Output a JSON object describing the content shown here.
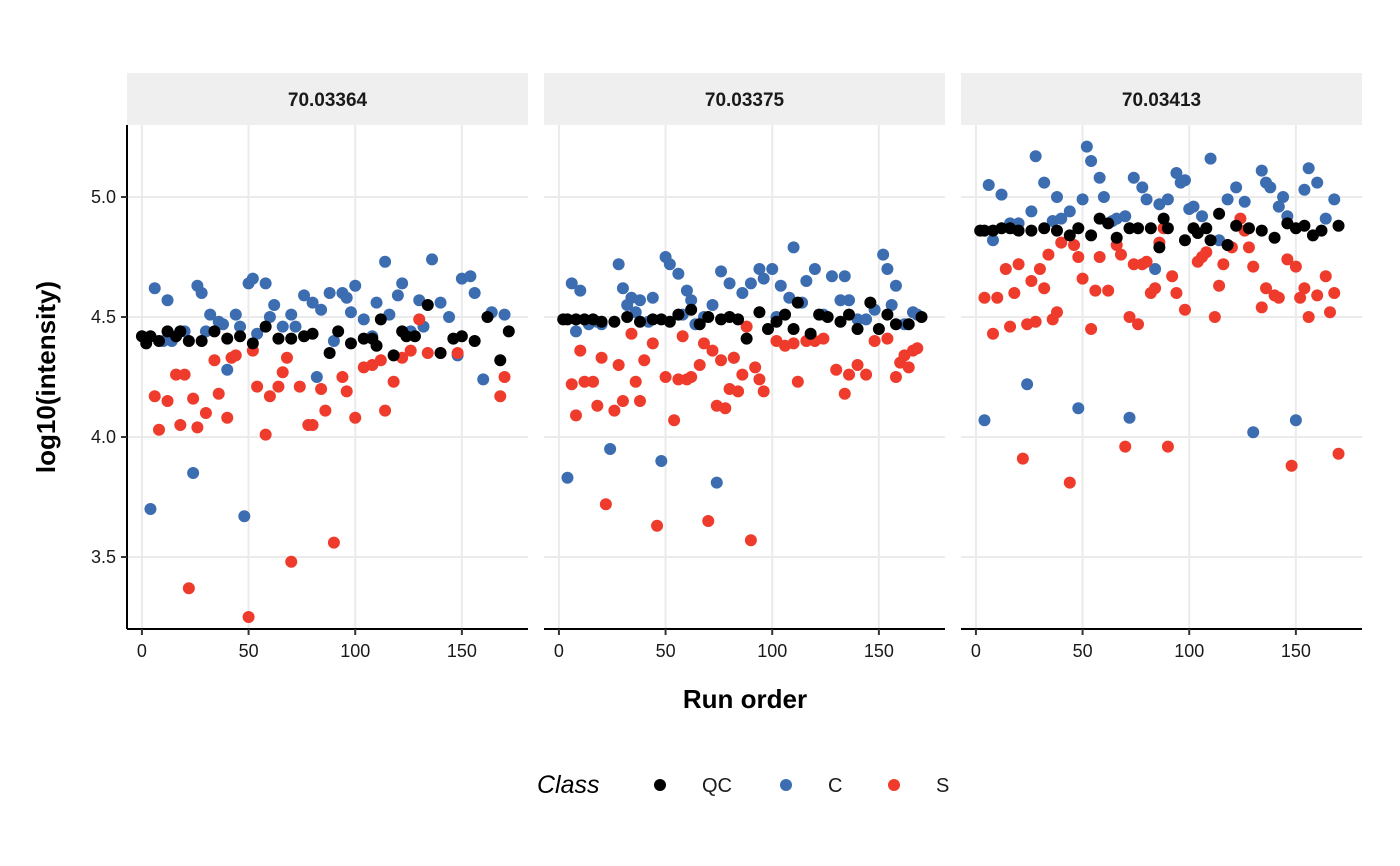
{
  "chart_data": {
    "type": "scatter",
    "xlabel": "Run order",
    "ylabel": "log10(intensity)",
    "xlim": [
      -7,
      181
    ],
    "ylim": [
      3.2,
      5.3
    ],
    "x_ticks": [
      0,
      50,
      100,
      150
    ],
    "y_ticks": [
      3.5,
      4.0,
      4.5,
      5.0
    ],
    "x_tick_labels": [
      "0",
      "50",
      "100",
      "150"
    ],
    "y_tick_labels": [
      "3.5",
      "4.0",
      "4.5",
      "5.0"
    ],
    "grid": true,
    "legend": {
      "title": "Class",
      "position": "bottom",
      "entries": [
        {
          "label": "QC",
          "color": "#000000"
        },
        {
          "label": "C",
          "color": "#3b6db0"
        },
        {
          "label": "S",
          "color": "#ee3b2c"
        }
      ]
    },
    "facets": [
      {
        "title": "70.03364",
        "series": [
          {
            "name": "QC",
            "color": "#000000",
            "x": [
              0,
              2,
              4,
              8,
              12,
              16,
              18,
              22,
              28,
              34,
              40,
              46,
              52,
              58,
              64,
              70,
              76,
              80,
              88,
              92,
              98,
              104,
              108,
              110,
              112,
              118,
              122,
              124,
              128,
              134,
              140,
              146,
              150,
              156,
              162,
              168,
              172
            ],
            "y": [
              4.42,
              4.39,
              4.42,
              4.4,
              4.44,
              4.42,
              4.44,
              4.4,
              4.4,
              4.44,
              4.41,
              4.42,
              4.39,
              4.46,
              4.41,
              4.41,
              4.42,
              4.43,
              4.35,
              4.44,
              4.39,
              4.41,
              4.41,
              4.38,
              4.49,
              4.34,
              4.44,
              4.42,
              4.42,
              4.55,
              4.35,
              4.41,
              4.42,
              4.4,
              4.5,
              4.32,
              4.44
            ]
          },
          {
            "name": "C",
            "color": "#3b6db0",
            "x": [
              4,
              6,
              10,
              12,
              14,
              18,
              20,
              24,
              26,
              28,
              30,
              32,
              36,
              38,
              40,
              44,
              46,
              48,
              50,
              52,
              54,
              58,
              60,
              62,
              66,
              70,
              72,
              76,
              80,
              82,
              84,
              88,
              90,
              94,
              96,
              98,
              100,
              104,
              108,
              110,
              114,
              116,
              120,
              122,
              126,
              130,
              132,
              136,
              140,
              144,
              148,
              150,
              154,
              156,
              160,
              164,
              170
            ],
            "y": [
              3.7,
              4.62,
              4.4,
              4.57,
              4.4,
              4.44,
              4.44,
              3.85,
              4.63,
              4.6,
              4.44,
              4.51,
              4.48,
              4.47,
              4.28,
              4.51,
              4.46,
              3.67,
              4.64,
              4.66,
              4.43,
              4.64,
              4.5,
              4.55,
              4.46,
              4.51,
              4.46,
              4.59,
              4.56,
              4.25,
              4.53,
              4.6,
              4.4,
              4.6,
              4.58,
              4.52,
              4.63,
              4.49,
              4.42,
              4.56,
              4.73,
              4.51,
              4.59,
              4.64,
              4.44,
              4.57,
              4.46,
              4.74,
              4.56,
              4.5,
              4.34,
              4.66,
              4.67,
              4.6,
              4.24,
              4.52,
              4.51
            ]
          },
          {
            "name": "S",
            "color": "#ee3b2c",
            "x": [
              6,
              8,
              12,
              16,
              18,
              20,
              22,
              24,
              26,
              30,
              34,
              36,
              40,
              42,
              44,
              50,
              52,
              54,
              58,
              60,
              64,
              66,
              68,
              70,
              74,
              78,
              80,
              84,
              86,
              90,
              94,
              96,
              100,
              104,
              108,
              112,
              114,
              118,
              122,
              126,
              130,
              134,
              140,
              148,
              168,
              170
            ],
            "y": [
              4.17,
              4.03,
              4.15,
              4.26,
              4.05,
              4.26,
              3.37,
              4.16,
              4.04,
              4.1,
              4.32,
              4.18,
              4.08,
              4.33,
              4.34,
              3.25,
              4.36,
              4.21,
              4.01,
              4.17,
              4.21,
              4.27,
              4.33,
              3.48,
              4.21,
              4.05,
              4.05,
              4.2,
              4.11,
              3.56,
              4.25,
              4.19,
              4.08,
              4.29,
              4.3,
              4.32,
              4.11,
              4.23,
              4.33,
              4.36,
              4.49,
              4.35,
              4.35,
              4.35,
              4.17,
              4.25
            ]
          }
        ]
      },
      {
        "title": "70.03375",
        "series": [
          {
            "name": "QC",
            "color": "#000000",
            "x": [
              2,
              4,
              8,
              12,
              16,
              20,
              26,
              32,
              38,
              44,
              48,
              52,
              56,
              62,
              66,
              70,
              76,
              80,
              84,
              88,
              94,
              98,
              102,
              106,
              110,
              112,
              118,
              122,
              126,
              132,
              136,
              140,
              146,
              150,
              154,
              158,
              164,
              170
            ],
            "y": [
              4.49,
              4.49,
              4.49,
              4.49,
              4.49,
              4.48,
              4.48,
              4.5,
              4.48,
              4.49,
              4.49,
              4.48,
              4.51,
              4.53,
              4.47,
              4.5,
              4.49,
              4.5,
              4.49,
              4.41,
              4.52,
              4.45,
              4.48,
              4.51,
              4.45,
              4.56,
              4.43,
              4.51,
              4.5,
              4.48,
              4.51,
              4.45,
              4.56,
              4.45,
              4.51,
              4.47,
              4.47,
              4.5
            ]
          },
          {
            "name": "C",
            "color": "#3b6db0",
            "x": [
              4,
              6,
              8,
              10,
              14,
              18,
              20,
              24,
              28,
              30,
              32,
              34,
              36,
              38,
              42,
              44,
              48,
              50,
              52,
              56,
              58,
              60,
              62,
              64,
              68,
              72,
              74,
              76,
              80,
              82,
              86,
              90,
              94,
              96,
              100,
              102,
              104,
              108,
              110,
              114,
              116,
              120,
              124,
              128,
              132,
              134,
              136,
              140,
              144,
              148,
              152,
              154,
              156,
              158,
              162,
              166,
              168
            ],
            "y": [
              3.83,
              4.64,
              4.44,
              4.61,
              4.47,
              4.48,
              4.47,
              3.95,
              4.72,
              4.62,
              4.55,
              4.58,
              4.52,
              4.57,
              4.48,
              4.58,
              3.9,
              4.75,
              4.72,
              4.68,
              4.51,
              4.61,
              4.57,
              4.47,
              4.5,
              4.55,
              3.81,
              4.69,
              4.64,
              4.33,
              4.6,
              4.64,
              4.7,
              4.66,
              4.7,
              4.5,
              4.63,
              4.58,
              4.79,
              4.56,
              4.65,
              4.7,
              4.51,
              4.67,
              4.57,
              4.67,
              4.57,
              4.49,
              4.49,
              4.53,
              4.76,
              4.7,
              4.55,
              4.63,
              4.47,
              4.52,
              4.51
            ]
          },
          {
            "name": "S",
            "color": "#ee3b2c",
            "x": [
              6,
              8,
              10,
              12,
              16,
              18,
              20,
              22,
              26,
              28,
              30,
              34,
              36,
              38,
              40,
              44,
              46,
              50,
              54,
              56,
              58,
              60,
              62,
              66,
              68,
              70,
              72,
              74,
              76,
              78,
              80,
              82,
              84,
              86,
              88,
              90,
              92,
              94,
              96,
              102,
              106,
              110,
              112,
              116,
              120,
              124,
              130,
              134,
              136,
              140,
              144,
              148,
              154,
              158,
              160,
              162,
              164,
              166,
              168
            ],
            "y": [
              4.22,
              4.09,
              4.36,
              4.23,
              4.23,
              4.13,
              4.33,
              3.72,
              4.11,
              4.3,
              4.15,
              4.43,
              4.23,
              4.15,
              4.32,
              4.39,
              3.63,
              4.25,
              4.07,
              4.24,
              4.42,
              4.24,
              4.25,
              4.3,
              4.39,
              3.65,
              4.36,
              4.13,
              4.32,
              4.12,
              4.2,
              4.33,
              4.19,
              4.26,
              4.46,
              3.57,
              4.29,
              4.24,
              4.19,
              4.4,
              4.38,
              4.39,
              4.23,
              4.4,
              4.4,
              4.41,
              4.28,
              4.18,
              4.26,
              4.3,
              4.26,
              4.4,
              4.41,
              4.25,
              4.31,
              4.34,
              4.29,
              4.36,
              4.37
            ]
          }
        ]
      },
      {
        "title": "70.03413",
        "series": [
          {
            "name": "QC",
            "color": "#000000",
            "x": [
              2,
              4,
              8,
              12,
              16,
              20,
              26,
              32,
              38,
              44,
              48,
              54,
              58,
              62,
              66,
              72,
              76,
              82,
              86,
              88,
              90,
              98,
              102,
              104,
              108,
              110,
              114,
              118,
              122,
              128,
              134,
              140,
              146,
              150,
              154,
              158,
              162,
              170
            ],
            "y": [
              4.86,
              4.86,
              4.86,
              4.87,
              4.87,
              4.86,
              4.86,
              4.87,
              4.86,
              4.84,
              4.87,
              4.84,
              4.91,
              4.89,
              4.83,
              4.87,
              4.87,
              4.87,
              4.79,
              4.91,
              4.87,
              4.82,
              4.87,
              4.85,
              4.87,
              4.82,
              4.93,
              4.8,
              4.88,
              4.87,
              4.86,
              4.83,
              4.89,
              4.87,
              4.88,
              4.84,
              4.86,
              4.88
            ]
          },
          {
            "name": "C",
            "color": "#3b6db0",
            "x": [
              4,
              6,
              8,
              12,
              16,
              18,
              20,
              24,
              26,
              28,
              32,
              36,
              38,
              40,
              44,
              48,
              50,
              52,
              54,
              58,
              60,
              64,
              66,
              70,
              72,
              74,
              78,
              80,
              84,
              86,
              90,
              94,
              96,
              98,
              100,
              102,
              106,
              110,
              114,
              118,
              122,
              126,
              130,
              134,
              136,
              138,
              142,
              144,
              146,
              150,
              154,
              156,
              160,
              164,
              168
            ],
            "y": [
              4.07,
              5.05,
              4.82,
              5.01,
              4.89,
              4.87,
              4.89,
              4.22,
              4.94,
              5.17,
              5.06,
              4.9,
              5.0,
              4.91,
              4.94,
              4.12,
              4.99,
              5.21,
              5.15,
              5.08,
              5.0,
              4.9,
              4.91,
              4.92,
              4.08,
              5.08,
              5.04,
              4.99,
              4.7,
              4.97,
              4.99,
              5.1,
              5.06,
              5.07,
              4.95,
              4.96,
              4.92,
              5.16,
              4.82,
              4.99,
              5.04,
              4.98,
              4.02,
              5.11,
              5.06,
              5.04,
              4.96,
              5.0,
              4.92,
              4.07,
              5.03,
              5.12,
              5.06,
              4.91,
              4.99
            ]
          },
          {
            "name": "S",
            "color": "#ee3b2c",
            "x": [
              4,
              8,
              10,
              14,
              16,
              18,
              20,
              22,
              24,
              26,
              28,
              30,
              32,
              34,
              36,
              38,
              40,
              44,
              46,
              48,
              50,
              54,
              56,
              58,
              62,
              66,
              68,
              70,
              72,
              74,
              76,
              78,
              80,
              82,
              84,
              86,
              88,
              90,
              92,
              94,
              98,
              104,
              106,
              108,
              112,
              114,
              116,
              118,
              120,
              124,
              126,
              128,
              130,
              134,
              136,
              140,
              142,
              146,
              148,
              150,
              152,
              154,
              156,
              160,
              164,
              166,
              168,
              170
            ],
            "y": [
              4.58,
              4.43,
              4.58,
              4.7,
              4.46,
              4.6,
              4.72,
              3.91,
              4.47,
              4.65,
              4.48,
              4.7,
              4.62,
              4.76,
              4.49,
              4.52,
              4.81,
              3.81,
              4.8,
              4.75,
              4.66,
              4.45,
              4.61,
              4.75,
              4.61,
              4.8,
              4.76,
              3.96,
              4.5,
              4.72,
              4.47,
              4.72,
              4.73,
              4.6,
              4.62,
              4.81,
              4.87,
              3.96,
              4.67,
              4.6,
              4.53,
              4.73,
              4.75,
              4.77,
              4.5,
              4.63,
              4.72,
              4.8,
              4.79,
              4.91,
              4.86,
              4.79,
              4.71,
              4.54,
              4.62,
              4.59,
              4.58,
              4.74,
              3.88,
              4.71,
              4.58,
              4.62,
              4.5,
              4.59,
              4.67,
              4.52,
              4.6,
              3.93
            ]
          }
        ]
      }
    ]
  }
}
